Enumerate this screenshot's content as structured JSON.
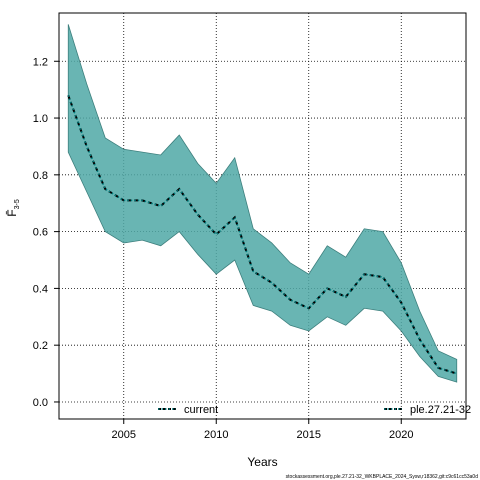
{
  "chart_data": {
    "type": "area",
    "title": "",
    "xlabel": "Years",
    "ylabel": "F̄3–5",
    "ylabel_main": "F̄",
    "ylabel_sub": "3-5",
    "xlim": [
      2001.5,
      2023.5
    ],
    "ylim": [
      -0.06,
      1.37
    ],
    "x_ticks": [
      2005,
      2010,
      2015,
      2020
    ],
    "y_ticks": [
      0.0,
      0.2,
      0.4,
      0.6,
      0.8,
      1.0,
      1.2
    ],
    "y_tick_labels": [
      "0.0",
      "0.2",
      "0.4",
      "0.6",
      "0.8",
      "1.0",
      "1.2"
    ],
    "grid": true,
    "x": [
      2002,
      2003,
      2004,
      2005,
      2006,
      2007,
      2008,
      2009,
      2010,
      2011,
      2012,
      2013,
      2014,
      2015,
      2016,
      2017,
      2018,
      2019,
      2020,
      2021,
      2022,
      2023
    ],
    "series": [
      {
        "name": "current",
        "values": [
          1.08,
          0.9,
          0.75,
          0.71,
          0.71,
          0.69,
          0.75,
          0.66,
          0.59,
          0.65,
          0.46,
          0.42,
          0.36,
          0.33,
          0.4,
          0.37,
          0.45,
          0.44,
          0.35,
          0.22,
          0.12,
          0.1
        ],
        "style": "dashed",
        "color": "#000000"
      },
      {
        "name": "ple.27.21-32",
        "values": [
          1.08,
          0.9,
          0.75,
          0.71,
          0.71,
          0.69,
          0.75,
          0.66,
          0.59,
          0.65,
          0.46,
          0.42,
          0.36,
          0.33,
          0.4,
          0.37,
          0.45,
          0.44,
          0.35,
          0.22,
          0.12,
          0.1
        ],
        "style": "dotted",
        "color": "#008080",
        "band_lower": [
          0.88,
          0.74,
          0.6,
          0.56,
          0.57,
          0.55,
          0.6,
          0.52,
          0.45,
          0.5,
          0.34,
          0.32,
          0.27,
          0.25,
          0.3,
          0.27,
          0.33,
          0.32,
          0.25,
          0.16,
          0.09,
          0.07
        ],
        "band_upper": [
          1.33,
          1.12,
          0.93,
          0.89,
          0.88,
          0.87,
          0.94,
          0.84,
          0.77,
          0.86,
          0.61,
          0.56,
          0.49,
          0.45,
          0.55,
          0.51,
          0.61,
          0.6,
          0.49,
          0.32,
          0.18,
          0.15
        ],
        "band_color": "#4fa8a6"
      }
    ],
    "legend": {
      "entries": [
        "current",
        "ple.27.21-32"
      ],
      "placement": "bottom"
    },
    "footer": "stockassessment.org,ple.27.21-32_WKBPLACE_2024_Sysw,r18362,git:c9c61cc53a0d"
  }
}
